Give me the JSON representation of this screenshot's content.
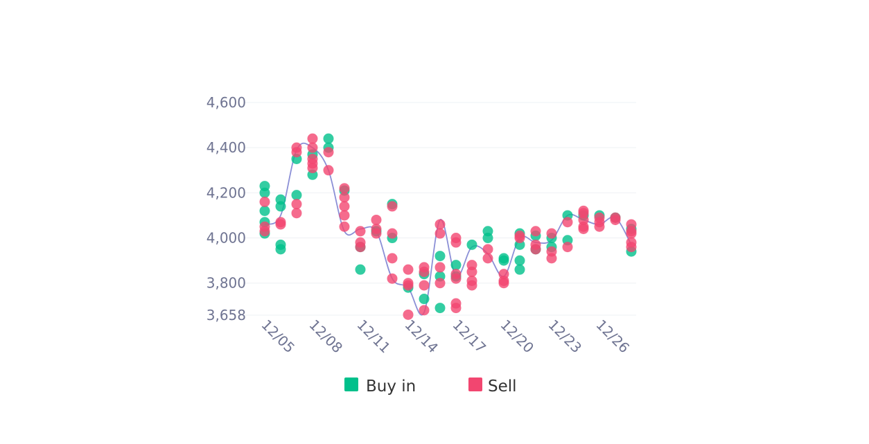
{
  "chart_data": {
    "type": "scatter",
    "x_tick_labels": [
      "12/05",
      "12/08",
      "12/11",
      "12/14",
      "12/17",
      "12/20",
      "12/23",
      "12/26"
    ],
    "y_tick_labels": [
      "4,600",
      "4,400",
      "4,200",
      "4,000",
      "3,800",
      "3,658"
    ],
    "y_ticks": [
      4600,
      4400,
      4200,
      4000,
      3800,
      3658
    ],
    "ylim": [
      3658,
      4600
    ],
    "x_range": [
      "12/05",
      "12/28"
    ],
    "grid": true,
    "legend_position": "bottom",
    "legend": [
      {
        "label": "Buy in",
        "color": "#00c08b"
      },
      {
        "label": "Sell",
        "color": "#f24670"
      }
    ],
    "line": {
      "color": "#8b8fd6",
      "x": [
        "12/05",
        "12/06",
        "12/07",
        "12/08",
        "12/09",
        "12/10",
        "12/11",
        "12/12",
        "12/13",
        "12/14",
        "12/15",
        "12/16",
        "12/17",
        "12/18",
        "12/19",
        "12/20",
        "12/21",
        "12/22",
        "12/23",
        "12/24",
        "12/25",
        "12/26",
        "12/27",
        "12/28"
      ],
      "y": [
        4060,
        4100,
        4390,
        4400,
        4300,
        4030,
        4040,
        4030,
        3820,
        3780,
        3670,
        4080,
        3830,
        3960,
        3930,
        3830,
        4000,
        3980,
        3990,
        4100,
        4080,
        4060,
        4090,
        3970
      ]
    },
    "series": [
      {
        "name": "Buy in",
        "color": "#00c08b",
        "points": [
          [
            "12/05",
            4230
          ],
          [
            "12/05",
            4200
          ],
          [
            "12/05",
            4120
          ],
          [
            "12/05",
            4070
          ],
          [
            "12/05",
            4020
          ],
          [
            "12/06",
            4170
          ],
          [
            "12/06",
            4140
          ],
          [
            "12/06",
            3970
          ],
          [
            "12/06",
            3950
          ],
          [
            "12/07",
            4350
          ],
          [
            "12/07",
            4190
          ],
          [
            "12/08",
            4370
          ],
          [
            "12/08",
            4280
          ],
          [
            "12/09",
            4440
          ],
          [
            "12/09",
            4400
          ],
          [
            "12/10",
            4210
          ],
          [
            "12/11",
            3960
          ],
          [
            "12/11",
            3860
          ],
          [
            "12/12",
            4030
          ],
          [
            "12/13",
            4150
          ],
          [
            "12/13",
            4000
          ],
          [
            "12/14",
            3780
          ],
          [
            "12/15",
            3730
          ],
          [
            "12/15",
            3840
          ],
          [
            "12/16",
            3690
          ],
          [
            "12/16",
            3830
          ],
          [
            "12/16",
            3920
          ],
          [
            "12/17",
            3880
          ],
          [
            "12/17",
            3830
          ],
          [
            "12/18",
            3970
          ],
          [
            "12/19",
            4030
          ],
          [
            "12/19",
            4000
          ],
          [
            "12/20",
            3910
          ],
          [
            "12/20",
            3900
          ],
          [
            "12/21",
            4020
          ],
          [
            "12/21",
            3970
          ],
          [
            "12/21",
            3900
          ],
          [
            "12/21",
            3860
          ],
          [
            "12/22",
            4010
          ],
          [
            "12/22",
            3950
          ],
          [
            "12/23",
            4000
          ],
          [
            "12/23",
            3960
          ],
          [
            "12/24",
            4100
          ],
          [
            "12/24",
            3990
          ],
          [
            "12/25",
            4100
          ],
          [
            "12/26",
            4100
          ],
          [
            "12/27",
            4090
          ],
          [
            "12/28",
            4040
          ],
          [
            "12/28",
            3940
          ]
        ]
      },
      {
        "name": "Sell",
        "color": "#f24670",
        "points": [
          [
            "12/05",
            4160
          ],
          [
            "12/05",
            4050
          ],
          [
            "12/05",
            4030
          ],
          [
            "12/06",
            4070
          ],
          [
            "12/06",
            4060
          ],
          [
            "12/07",
            4400
          ],
          [
            "12/07",
            4380
          ],
          [
            "12/07",
            4150
          ],
          [
            "12/07",
            4110
          ],
          [
            "12/08",
            4440
          ],
          [
            "12/08",
            4400
          ],
          [
            "12/08",
            4350
          ],
          [
            "12/08",
            4330
          ],
          [
            "12/08",
            4310
          ],
          [
            "12/09",
            4380
          ],
          [
            "12/09",
            4300
          ],
          [
            "12/10",
            4220
          ],
          [
            "12/10",
            4180
          ],
          [
            "12/10",
            4140
          ],
          [
            "12/10",
            4100
          ],
          [
            "12/10",
            4050
          ],
          [
            "12/11",
            4030
          ],
          [
            "12/11",
            3980
          ],
          [
            "12/11",
            3960
          ],
          [
            "12/12",
            4080
          ],
          [
            "12/12",
            4040
          ],
          [
            "12/12",
            4020
          ],
          [
            "12/13",
            4140
          ],
          [
            "12/13",
            4020
          ],
          [
            "12/13",
            3910
          ],
          [
            "12/13",
            3820
          ],
          [
            "12/14",
            3860
          ],
          [
            "12/14",
            3800
          ],
          [
            "12/14",
            3790
          ],
          [
            "12/14",
            3660
          ],
          [
            "12/15",
            3870
          ],
          [
            "12/15",
            3850
          ],
          [
            "12/15",
            3790
          ],
          [
            "12/15",
            3680
          ],
          [
            "12/16",
            4060
          ],
          [
            "12/16",
            4020
          ],
          [
            "12/16",
            3870
          ],
          [
            "12/16",
            3800
          ],
          [
            "12/17",
            4000
          ],
          [
            "12/17",
            3980
          ],
          [
            "12/17",
            3840
          ],
          [
            "12/17",
            3820
          ],
          [
            "12/17",
            3710
          ],
          [
            "12/17",
            3690
          ],
          [
            "12/18",
            3880
          ],
          [
            "12/18",
            3850
          ],
          [
            "12/18",
            3810
          ],
          [
            "12/18",
            3790
          ],
          [
            "12/19",
            3950
          ],
          [
            "12/19",
            3910
          ],
          [
            "12/20",
            3840
          ],
          [
            "12/20",
            3810
          ],
          [
            "12/20",
            3800
          ],
          [
            "12/21",
            4010
          ],
          [
            "12/21",
            4000
          ],
          [
            "12/22",
            4030
          ],
          [
            "12/22",
            3970
          ],
          [
            "12/22",
            3950
          ],
          [
            "12/23",
            4020
          ],
          [
            "12/23",
            3940
          ],
          [
            "12/23",
            3910
          ],
          [
            "12/24",
            4070
          ],
          [
            "12/24",
            3960
          ],
          [
            "12/25",
            4120
          ],
          [
            "12/25",
            4110
          ],
          [
            "12/25",
            4080
          ],
          [
            "12/25",
            4050
          ],
          [
            "12/25",
            4040
          ],
          [
            "12/26",
            4090
          ],
          [
            "12/26",
            4070
          ],
          [
            "12/26",
            4050
          ],
          [
            "12/27",
            4090
          ],
          [
            "12/27",
            4080
          ],
          [
            "12/28",
            4060
          ],
          [
            "12/28",
            4030
          ],
          [
            "12/28",
            4020
          ],
          [
            "12/28",
            3980
          ],
          [
            "12/28",
            3960
          ]
        ]
      }
    ]
  }
}
